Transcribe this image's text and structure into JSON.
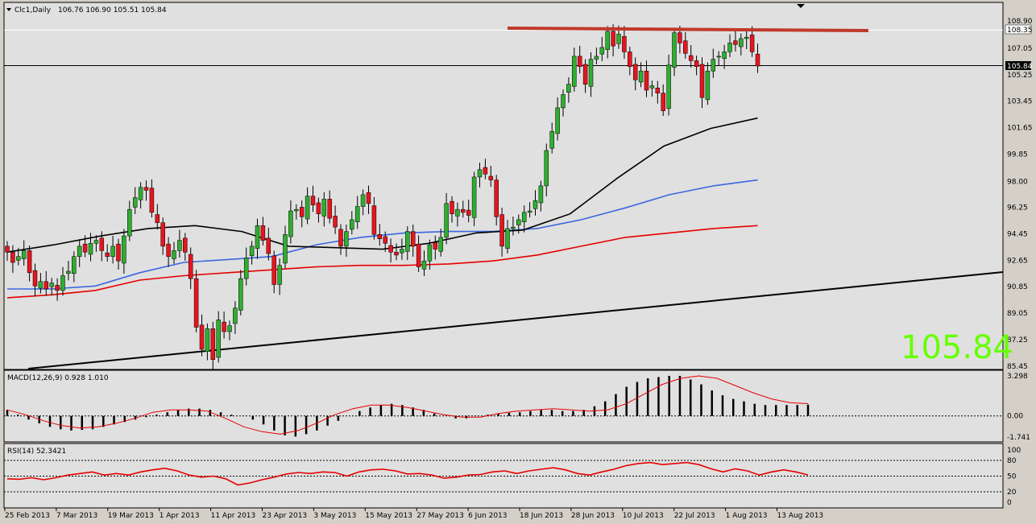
{
  "header": {
    "symbol": "Clc1,Daily",
    "ohlc": "106.76 106.90 105.51 105.84"
  },
  "big_price": "105.84",
  "price_tag": "105.84",
  "price_tag_top": "108.35",
  "colors": {
    "bull": "#2fae2f",
    "bear": "#e8141e",
    "bg_panel": "#e0e0e0",
    "ma_fast": "#000000",
    "ma_mid": "#3a66e0",
    "ma_slow": "#e60000",
    "resistance": "#c0392b",
    "big_price": "#66ff00",
    "macd_signal": "#e60000",
    "rsi": "#e60000"
  },
  "main_axis": [
    "108.90",
    "107.05",
    "105.25",
    "103.45",
    "101.65",
    "99.85",
    "98.00",
    "96.25",
    "94.45",
    "92.65",
    "90.85",
    "89.05",
    "87.25",
    "85.45"
  ],
  "macd_panel": {
    "label": "MACD(12,26,9) 0.928 1.010",
    "axis": [
      "3.298",
      "0.00",
      "-1.741"
    ]
  },
  "rsi_panel": {
    "label": "RSI(14) 52.3421",
    "axis": [
      "100",
      "80",
      "50",
      "20",
      "0"
    ]
  },
  "x_axis": [
    "25 Feb 2013",
    "7 Mar 2013",
    "19 Mar 2013",
    "1 Apr 2013",
    "11 Apr 2013",
    "23 Apr 2013",
    "3 May 2013",
    "15 May 2013",
    "27 May 2013",
    "6 Jun 2013",
    "18 Jun 2013",
    "28 Jun 2013",
    "10 Jul 2013",
    "22 Jul 2013",
    "1 Aug 2013",
    "13 Aug 2013"
  ],
  "chart_data": {
    "type": "candlestick",
    "ylim": [
      85.45,
      109.6
    ],
    "closes": [
      93.2,
      92.5,
      92.9,
      93.3,
      91.8,
      90.9,
      91.2,
      90.7,
      91.1,
      90.6,
      91.6,
      91.9,
      92.9,
      93.6,
      93.2,
      93.8,
      94.0,
      93.3,
      92.9,
      93.6,
      92.6,
      94.3,
      96.1,
      96.9,
      97.6,
      97.4,
      95.9,
      95.2,
      93.6,
      92.9,
      93.3,
      94.0,
      93.2,
      91.4,
      88.1,
      86.6,
      88.0,
      85.9,
      88.6,
      87.8,
      88.2,
      89.4,
      91.4,
      92.8,
      93.6,
      95.0,
      94.0,
      93.1,
      91.0,
      92.3,
      94.4,
      96.0,
      96.1,
      95.6,
      97.0,
      96.4,
      95.8,
      96.8,
      95.5,
      94.9,
      93.6,
      94.6,
      95.4,
      96.3,
      97.1,
      96.5,
      94.4,
      94.1,
      93.8,
      93.2,
      93.0,
      93.4,
      94.6,
      93.6,
      92.2,
      92.6,
      93.7,
      93.4,
      94.2,
      96.5,
      95.8,
      96.1,
      95.9,
      95.7,
      98.3,
      98.8,
      98.5,
      98.1,
      95.6,
      93.6,
      94.8,
      94.9,
      95.4,
      95.9,
      96.0,
      96.7,
      97.7,
      100.1,
      101.4,
      103.0,
      103.9,
      104.6,
      106.5,
      105.8,
      104.6,
      106.3,
      106.5,
      107.1,
      108.2,
      107.2,
      108.0,
      106.8,
      105.8,
      104.9,
      105.5,
      104.2,
      104.5,
      104.0,
      102.8,
      105.9,
      108.1,
      107.4,
      106.7,
      106.2,
      105.8,
      103.7,
      105.5,
      106.3,
      106.5,
      106.8,
      107.4,
      107.3,
      107.7,
      107.8,
      106.8,
      105.84
    ],
    "ma_fast": [
      93.2,
      93.7,
      94.3,
      94.8,
      95.0,
      94.6,
      93.6,
      93.5,
      93.4,
      93.8,
      94.5,
      94.7,
      95.8,
      98.2,
      100.4,
      101.6,
      102.3
    ],
    "ma_mid": [
      90.7,
      90.7,
      90.9,
      91.8,
      92.5,
      92.7,
      92.9,
      93.7,
      94.2,
      94.5,
      94.6,
      94.6,
      94.8,
      95.4,
      96.2,
      97.1,
      97.7,
      98.1
    ],
    "ma_slow": [
      90.1,
      90.3,
      90.6,
      91.3,
      91.6,
      91.8,
      92.0,
      92.2,
      92.3,
      92.3,
      92.4,
      92.6,
      93.0,
      93.6,
      94.2,
      94.5,
      94.8,
      95.0
    ],
    "macd_hist": [
      0.5,
      0.1,
      -0.3,
      -0.6,
      -0.9,
      -1.1,
      -1.2,
      -1.15,
      -1.1,
      -0.9,
      -0.7,
      -0.5,
      -0.3,
      -0.1,
      0.1,
      0.3,
      0.5,
      0.6,
      0.6,
      0.5,
      0.3,
      0.1,
      0.0,
      -0.3,
      -0.7,
      -1.2,
      -1.6,
      -1.7,
      -1.5,
      -1.2,
      -0.8,
      -0.4,
      0.0,
      0.4,
      0.7,
      0.9,
      1.0,
      0.9,
      0.7,
      0.5,
      0.2,
      0.0,
      -0.2,
      -0.2,
      0.0,
      0.1,
      0.2,
      0.25,
      0.3,
      0.4,
      0.5,
      0.5,
      0.4,
      0.4,
      0.5,
      0.8,
      1.2,
      1.8,
      2.4,
      2.8,
      3.1,
      3.2,
      3.3,
      3.3,
      3.0,
      2.6,
      2.1,
      1.7,
      1.4,
      1.2,
      1.0,
      0.9,
      0.9,
      0.9,
      0.9,
      0.928
    ],
    "macd_signal": [
      0.5,
      0.1,
      -0.4,
      -0.8,
      -1.0,
      -0.9,
      -0.6,
      -0.2,
      0.3,
      0.5,
      0.5,
      0.4,
      -0.2,
      -0.9,
      -1.3,
      -1.5,
      -1.2,
      -0.6,
      0.1,
      0.6,
      0.9,
      0.9,
      0.7,
      0.4,
      0.1,
      -0.1,
      -0.1,
      0.2,
      0.4,
      0.5,
      0.6,
      0.5,
      0.4,
      0.5,
      1.0,
      1.8,
      2.6,
      3.1,
      3.3,
      3.1,
      2.5,
      1.9,
      1.4,
      1.1,
      1.01
    ],
    "rsi": [
      45,
      44,
      47,
      43,
      47,
      52,
      55,
      58,
      52,
      55,
      52,
      58,
      62,
      65,
      60,
      52,
      48,
      50,
      45,
      33,
      37,
      43,
      48,
      54,
      57,
      55,
      58,
      57,
      50,
      58,
      62,
      63,
      60,
      54,
      55,
      52,
      46,
      48,
      52,
      53,
      58,
      60,
      55,
      60,
      63,
      66,
      62,
      55,
      52,
      58,
      63,
      70,
      74,
      76,
      72,
      74,
      76,
      72,
      64,
      58,
      64,
      60,
      52,
      58,
      62,
      58,
      52.34
    ]
  }
}
